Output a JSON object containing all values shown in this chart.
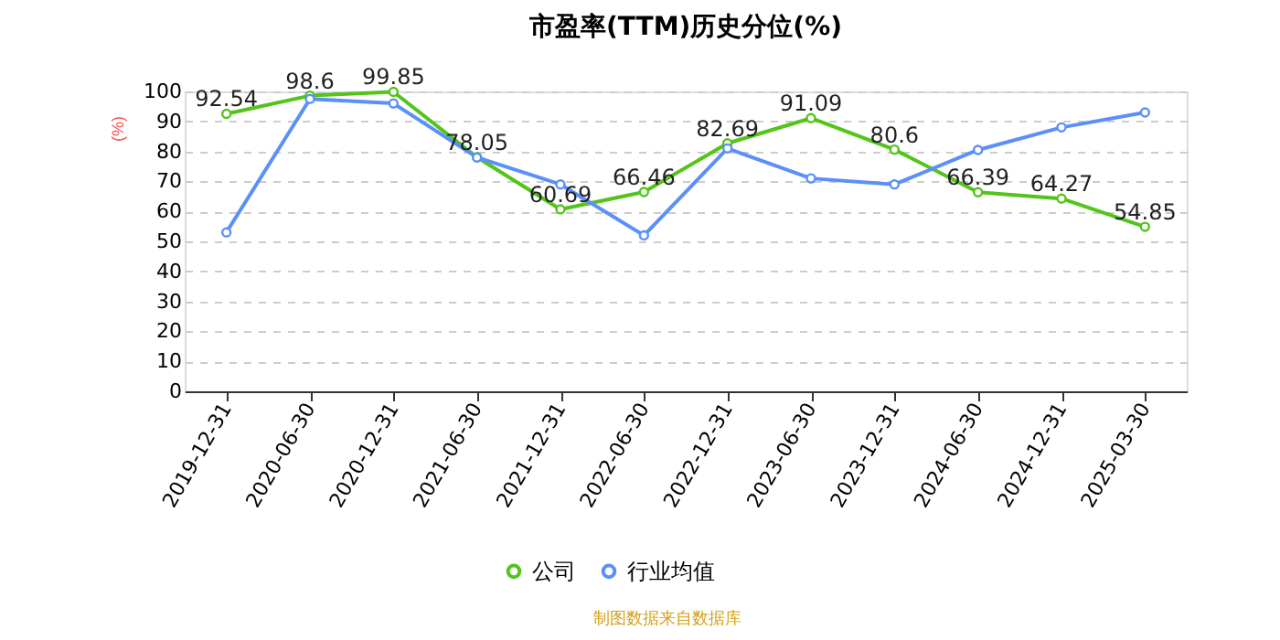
{
  "chart_data": {
    "type": "line",
    "title": "市盈率(TTM)历史分位(%)",
    "ylabel": "(%)",
    "categories": [
      "2019-12-31",
      "2020-06-30",
      "2020-12-31",
      "2021-06-30",
      "2021-12-31",
      "2022-06-30",
      "2022-12-31",
      "2023-06-30",
      "2023-12-31",
      "2024-06-30",
      "2024-12-31",
      "2025-03-30"
    ],
    "series": [
      {
        "name": "公司",
        "color": "#52c41a",
        "values": [
          92.54,
          98.6,
          99.85,
          78.05,
          60.69,
          66.46,
          82.69,
          91.09,
          80.6,
          66.39,
          64.27,
          54.85
        ],
        "value_labels": [
          "92.54",
          "98.6",
          "99.85",
          "78.05",
          "60.69",
          "66.46",
          "82.69",
          "91.09",
          "80.6",
          "66.39",
          "64.27",
          "54.85"
        ]
      },
      {
        "name": "行业均值",
        "color": "#5b8ff9",
        "values": [
          53,
          97.5,
          96,
          78,
          69,
          52,
          81,
          71,
          69,
          80.5,
          88,
          93
        ]
      }
    ],
    "ylim": [
      0,
      100
    ],
    "yticks": [
      0,
      10,
      20,
      30,
      40,
      50,
      60,
      70,
      80,
      90,
      100
    ],
    "grid": "y",
    "legend": "bottom",
    "marker": "circle",
    "line_style": "solid",
    "annotations": [
      "制图数据来自数据库"
    ]
  }
}
